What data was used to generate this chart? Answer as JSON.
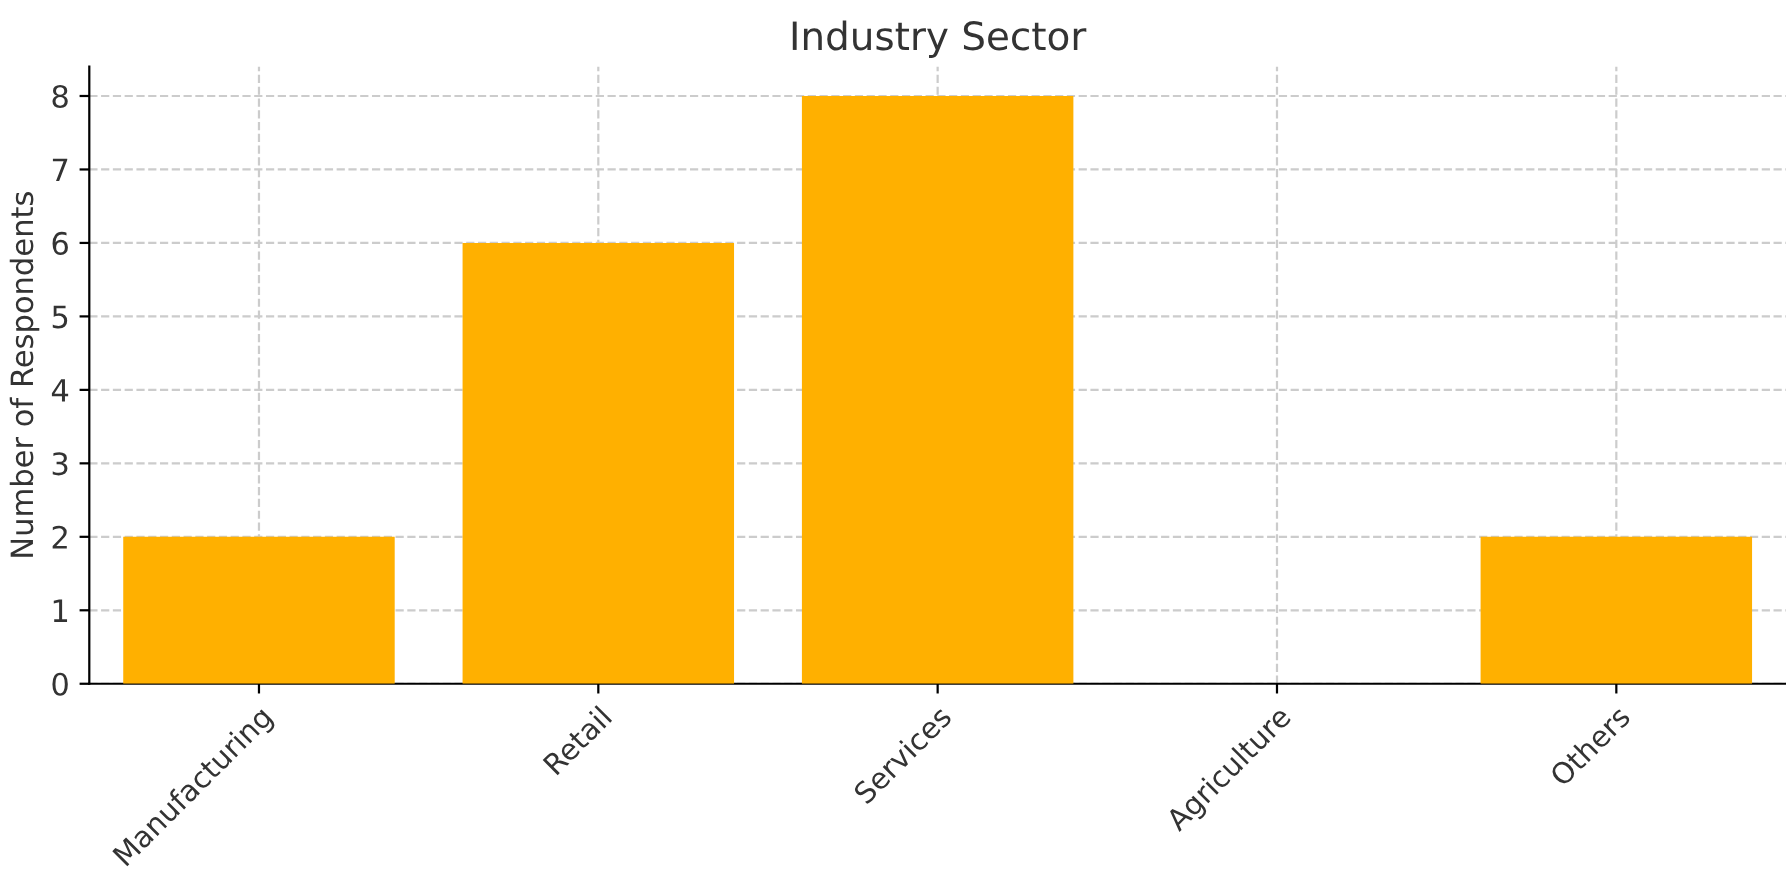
{
  "chart_data": {
    "type": "bar",
    "title": "Industry Sector",
    "ylabel": "Number of Respondents",
    "categories": [
      "Manufacturing",
      "Retail",
      "Services",
      "Agriculture",
      "Others"
    ],
    "values": [
      2,
      6,
      8,
      0,
      2
    ],
    "color": "#ffb000",
    "ylim": [
      0,
      8.4
    ],
    "yticks": [
      0,
      1,
      2,
      3,
      4,
      5,
      6,
      7,
      8
    ],
    "grid": true
  }
}
